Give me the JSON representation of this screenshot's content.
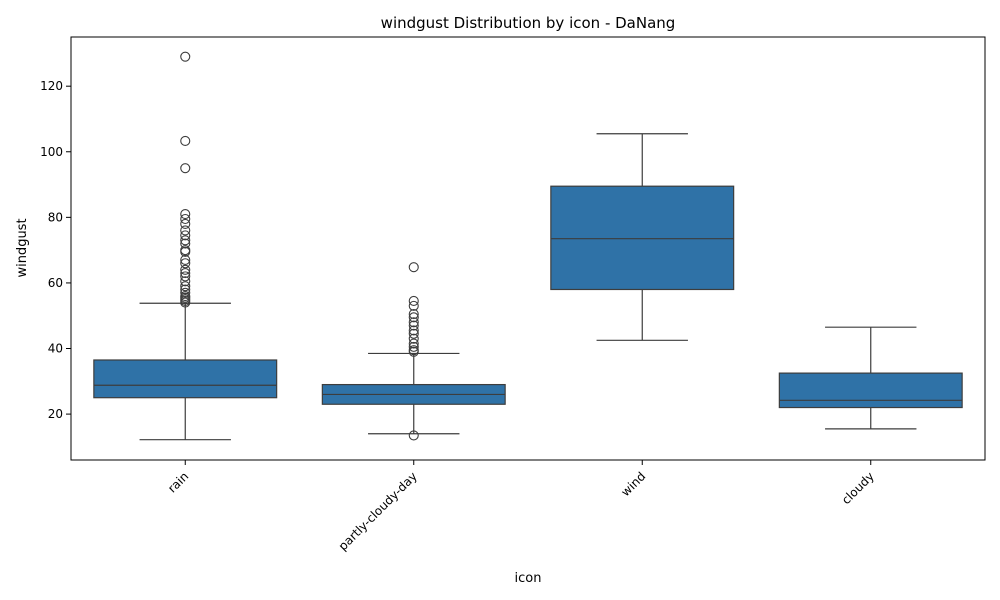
{
  "chart_data": {
    "type": "box",
    "title": "windgust Distribution by icon - DaNang",
    "xlabel": "icon",
    "ylabel": "windgust",
    "ylim": [
      6,
      135
    ],
    "yticks": [
      20,
      40,
      60,
      80,
      100,
      120
    ],
    "grid": false,
    "box_color": "#2f72a7",
    "categories": [
      "rain",
      "partly-cloudy-day",
      "wind",
      "cloudy"
    ],
    "boxes": [
      {
        "category": "rain",
        "whisker_low": 12.2,
        "q1": 25.0,
        "median": 28.8,
        "q3": 36.5,
        "whisker_high": 53.8,
        "outliers": [
          54.0,
          54.5,
          55.0,
          55.5,
          56.0,
          57.0,
          58.0,
          59.0,
          60.5,
          62.0,
          63.0,
          64.0,
          66.0,
          67.0,
          69.5,
          70.0,
          72.0,
          73.0,
          74.5,
          76.0,
          78.0,
          79.5,
          81.0,
          95.0,
          103.3,
          129.0
        ]
      },
      {
        "category": "partly-cloudy-day",
        "whisker_low": 14.0,
        "q1": 23.0,
        "median": 26.0,
        "q3": 29.0,
        "whisker_high": 38.5,
        "outliers": [
          13.5,
          39.0,
          39.5,
          40.5,
          41.5,
          43.0,
          44.5,
          45.5,
          47.0,
          48.0,
          49.5,
          50.5,
          53.0,
          54.5,
          64.8
        ]
      },
      {
        "category": "wind",
        "whisker_low": 42.5,
        "q1": 58.0,
        "median": 73.5,
        "q3": 89.5,
        "whisker_high": 105.5,
        "outliers": []
      },
      {
        "category": "cloudy",
        "whisker_low": 15.5,
        "q1": 22.0,
        "median": 24.2,
        "q3": 32.5,
        "whisker_high": 46.5,
        "outliers": []
      }
    ]
  }
}
